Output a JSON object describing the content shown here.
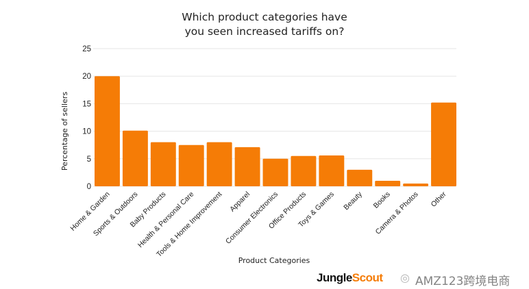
{
  "chart_data": {
    "type": "bar",
    "title_lines": [
      "Which product categories have",
      "you seen increased tariffs on?"
    ],
    "xlabel": "Product Categories",
    "ylabel": "Percentage of sellers",
    "ylim": [
      0,
      25
    ],
    "yticks": [
      0,
      5,
      10,
      15,
      20,
      25
    ],
    "grid": true,
    "categories": [
      "Home & Garden",
      "Sports & Outdoors",
      "Baby Products",
      "Health & Personal Care",
      "Tools & Home Improvement",
      "Apparel",
      "Consumer Electronics",
      "Office Products",
      "Toys & Games",
      "Beauty",
      "Books",
      "Camera & Photos",
      "Other"
    ],
    "values": [
      20.0,
      10.1,
      8.0,
      7.5,
      8.0,
      7.1,
      5.0,
      5.5,
      5.6,
      3.0,
      1.0,
      0.5,
      15.2
    ],
    "bar_color": "#f57c06"
  },
  "logo": {
    "part1": "Jungle",
    "part2": "Scout"
  },
  "watermark": {
    "text": "AMZ123跨境电商",
    "icon": "wechat-icon"
  }
}
